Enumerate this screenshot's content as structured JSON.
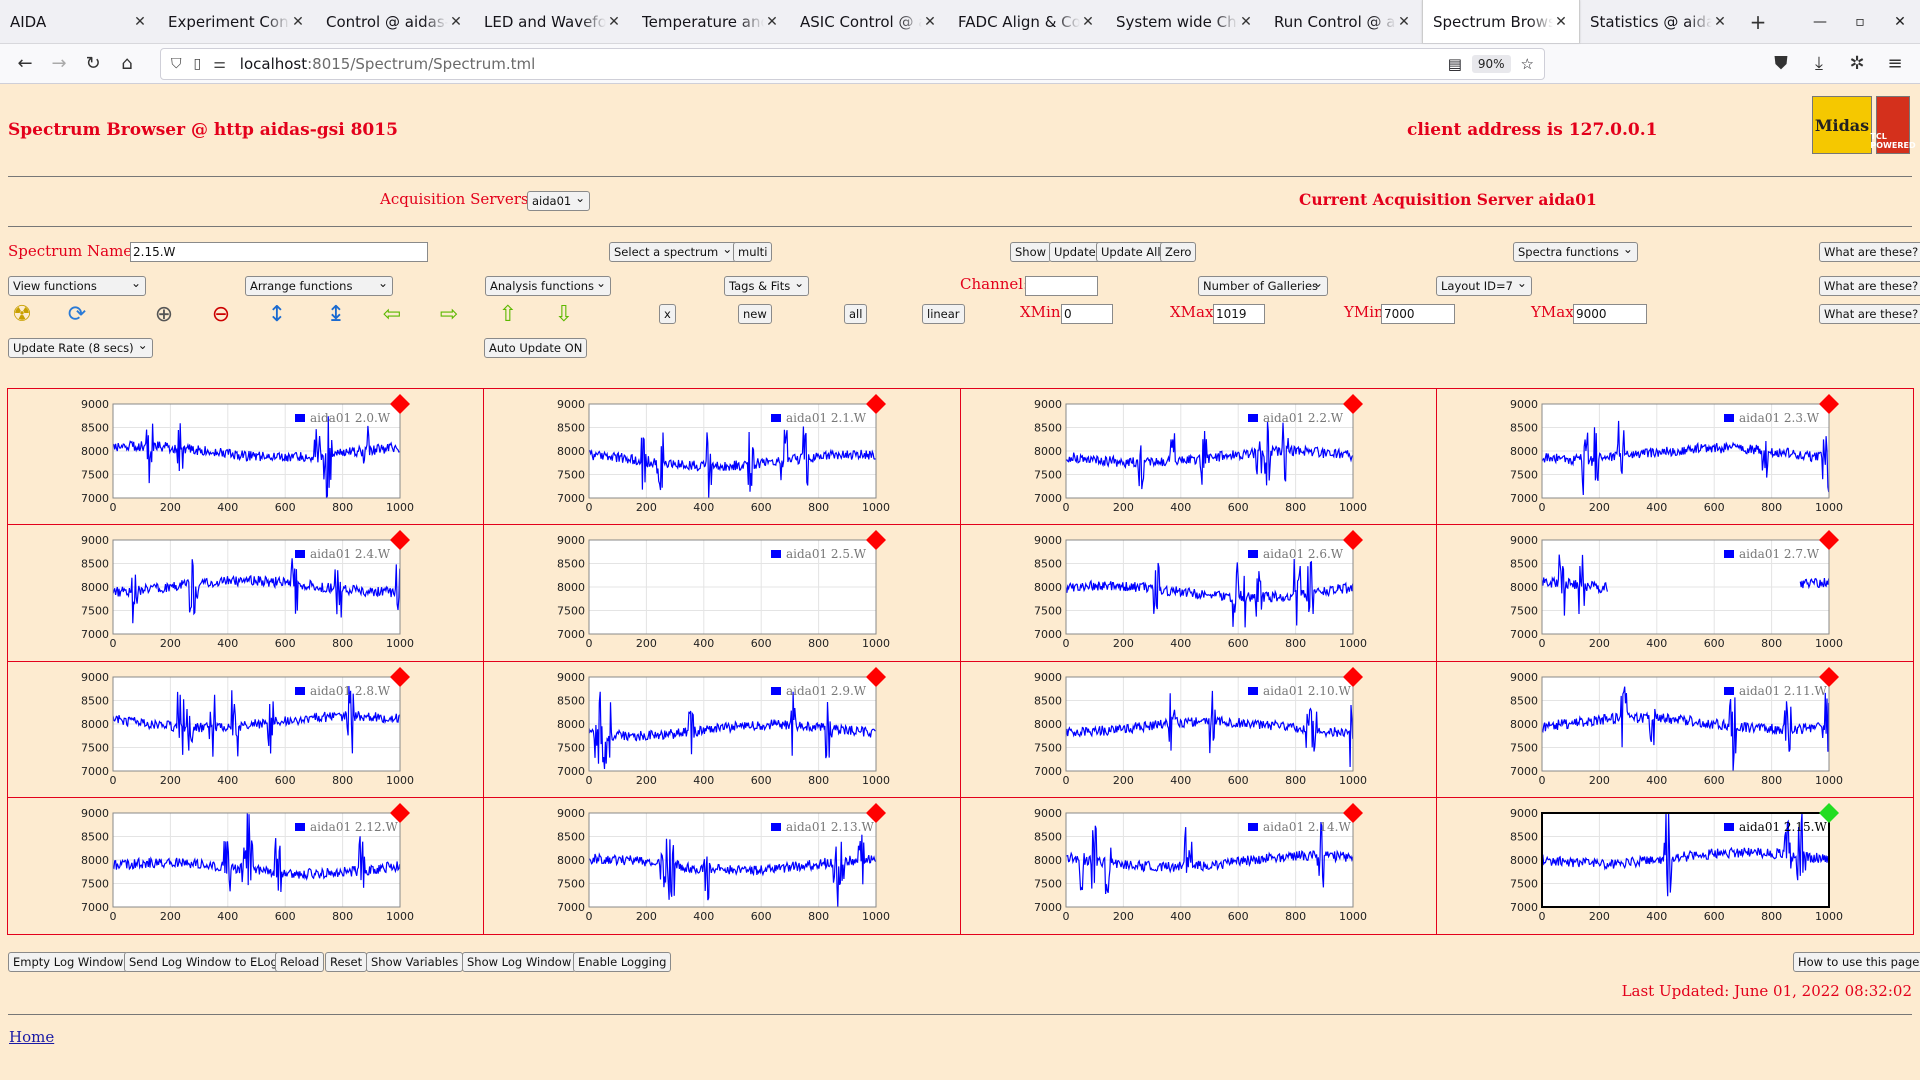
{
  "browser": {
    "tabs": [
      {
        "title": "AIDA",
        "active": false
      },
      {
        "title": "Experiment Control",
        "active": false
      },
      {
        "title": "Control @ aidas-gsi",
        "active": false
      },
      {
        "title": "LED and Waveform",
        "active": false
      },
      {
        "title": "Temperature and st",
        "active": false
      },
      {
        "title": "ASIC Control @ aid",
        "active": false
      },
      {
        "title": "FADC Align & Cont",
        "active": false
      },
      {
        "title": "System wide Check",
        "active": false
      },
      {
        "title": "Run Control @ aida",
        "active": false
      },
      {
        "title": "Spectrum Browser",
        "active": true
      },
      {
        "title": "Statistics @ aidas-g",
        "active": false
      }
    ],
    "url_host": "localhost",
    "url_path": ":8015/Spectrum/Spectrum.tml",
    "zoom": "90%"
  },
  "header": {
    "title": "Spectrum Browser @ http aidas-gsi 8015",
    "client_address": "client address is 127.0.0.1",
    "logo_text": "Midas",
    "logo2_text": "TCL POWERED"
  },
  "acquisition": {
    "label": "Acquisition Servers",
    "selected": "aida01",
    "current": "Current Acquisition Server aida01"
  },
  "controls": {
    "spectrum_name_label": "Spectrum Name:",
    "spectrum_name_value": "2.15.W",
    "select_spectrum": "Select a spectrum",
    "multi": "multi",
    "show": "Show",
    "update": "Update",
    "update_all": "Update All",
    "zero": "Zero",
    "spectra_functions": "Spectra functions",
    "what_are_these": "What are these?",
    "view_functions": "View functions",
    "arrange_functions": "Arrange functions",
    "analysis_functions": "Analysis functions",
    "tags_fits": "Tags & Fits",
    "channel_label": "Channel:",
    "channel_value": "",
    "number_of_galleries": "Number of Galleries",
    "layout": "Layout ID=7",
    "x_btn": "x",
    "new_btn": "new",
    "all_btn": "all",
    "linear_btn": "linear",
    "xmin_label": "XMin",
    "xmin_value": "0",
    "xmax_label": "XMax",
    "xmax_value": "1019",
    "ymin_label": "YMin",
    "ymin_value": "7000",
    "ymax_label": "YMax",
    "ymax_value": "9000",
    "update_rate": "Update Rate (8 secs)",
    "auto_update": "Auto Update ON"
  },
  "icons": {
    "radiation": "☢",
    "refresh": "⟳",
    "zoom_in": "⊕",
    "zoom_out": "⊖",
    "expand_y": "↕",
    "compress_y": "↨",
    "left": "⇦",
    "right": "⇨",
    "up": "⇧",
    "down": "⇩"
  },
  "chart_data": [
    {
      "type": "line",
      "legend": "aida01 2.0.W",
      "seed": 1,
      "marker": "red",
      "xlim": [
        0,
        1000
      ],
      "ylim": [
        7000,
        9000
      ],
      "xticks": [
        "0",
        "200",
        "400",
        "600",
        "800",
        "1000"
      ],
      "yticks": [
        "9000",
        "8500",
        "8000",
        "7500",
        "7000"
      ],
      "note": "approximate noisy baseline ~7900"
    },
    {
      "type": "line",
      "legend": "aida01 2.1.W",
      "seed": 2,
      "marker": "red",
      "xlim": [
        0,
        1000
      ],
      "ylim": [
        7000,
        9000
      ],
      "xticks": [
        "0",
        "200",
        "400",
        "600",
        "800",
        "1000"
      ],
      "yticks": [
        "9000",
        "8500",
        "8000",
        "7500",
        "7000"
      ]
    },
    {
      "type": "line",
      "legend": "aida01 2.2.W",
      "seed": 3,
      "marker": "red",
      "xlim": [
        0,
        1000
      ],
      "ylim": [
        7000,
        9000
      ],
      "xticks": [
        "0",
        "200",
        "400",
        "600",
        "800",
        "1000"
      ],
      "yticks": [
        "9000",
        "8500",
        "8000",
        "7500",
        "7000"
      ]
    },
    {
      "type": "line",
      "legend": "aida01 2.3.W",
      "seed": 4,
      "marker": "red",
      "xlim": [
        0,
        1000
      ],
      "ylim": [
        7000,
        9000
      ],
      "xticks": [
        "0",
        "200",
        "400",
        "600",
        "800",
        "1000"
      ],
      "yticks": [
        "9000",
        "8500",
        "8000",
        "7500",
        "7000"
      ]
    },
    {
      "type": "line",
      "legend": "aida01 2.4.W",
      "seed": 5,
      "marker": "red",
      "xlim": [
        0,
        1000
      ],
      "ylim": [
        7000,
        9000
      ],
      "xticks": [
        "0",
        "200",
        "400",
        "600",
        "800",
        "1000"
      ],
      "yticks": [
        "9000",
        "8500",
        "8000",
        "7500",
        "7000"
      ]
    },
    {
      "type": "line",
      "legend": "aida01 2.5.W",
      "seed": 6,
      "marker": "red",
      "empty": true,
      "xlim": [
        0,
        1000
      ],
      "ylim": [
        7000,
        9000
      ],
      "xticks": [
        "0",
        "200",
        "400",
        "600",
        "800",
        "1000"
      ],
      "yticks": [
        "9000",
        "8500",
        "8000",
        "7500",
        "7000"
      ]
    },
    {
      "type": "line",
      "legend": "aida01 2.6.W",
      "seed": 7,
      "marker": "red",
      "xlim": [
        0,
        1000
      ],
      "ylim": [
        7000,
        9000
      ],
      "xticks": [
        "0",
        "200",
        "400",
        "600",
        "800",
        "1000"
      ],
      "yticks": [
        "9000",
        "8500",
        "8000",
        "7500",
        "7000"
      ]
    },
    {
      "type": "line",
      "legend": "aida01 2.7.W",
      "seed": 8,
      "marker": "red",
      "partial": true,
      "xlim": [
        0,
        1000
      ],
      "ylim": [
        7000,
        9000
      ],
      "xticks": [
        "0",
        "200",
        "400",
        "600",
        "800",
        "1000"
      ],
      "yticks": [
        "9000",
        "8500",
        "8000",
        "7500",
        "7000"
      ]
    },
    {
      "type": "line",
      "legend": "aida01 2.8.W",
      "seed": 9,
      "marker": "red",
      "xlim": [
        0,
        1000
      ],
      "ylim": [
        7000,
        9000
      ],
      "xticks": [
        "0",
        "200",
        "400",
        "600",
        "800",
        "1000"
      ],
      "yticks": [
        "9000",
        "8500",
        "8000",
        "7500",
        "7000"
      ]
    },
    {
      "type": "line",
      "legend": "aida01 2.9.W",
      "seed": 10,
      "marker": "red",
      "xlim": [
        0,
        1000
      ],
      "ylim": [
        7000,
        9000
      ],
      "xticks": [
        "0",
        "200",
        "400",
        "600",
        "800",
        "1000"
      ],
      "yticks": [
        "9000",
        "8500",
        "8000",
        "7500",
        "7000"
      ]
    },
    {
      "type": "line",
      "legend": "aida01 2.10.W",
      "seed": 11,
      "marker": "red",
      "xlim": [
        0,
        1000
      ],
      "ylim": [
        7000,
        9000
      ],
      "xticks": [
        "0",
        "200",
        "400",
        "600",
        "800",
        "1000"
      ],
      "yticks": [
        "9000",
        "8500",
        "8000",
        "7500",
        "7000"
      ]
    },
    {
      "type": "line",
      "legend": "aida01 2.11.W",
      "seed": 12,
      "marker": "red",
      "xlim": [
        0,
        1000
      ],
      "ylim": [
        7000,
        9000
      ],
      "xticks": [
        "0",
        "200",
        "400",
        "600",
        "800",
        "1000"
      ],
      "yticks": [
        "9000",
        "8500",
        "8000",
        "7500",
        "7000"
      ]
    },
    {
      "type": "line",
      "legend": "aida01 2.12.W",
      "seed": 13,
      "marker": "red",
      "xlim": [
        0,
        1000
      ],
      "ylim": [
        7000,
        9000
      ],
      "xticks": [
        "0",
        "200",
        "400",
        "600",
        "800",
        "1000"
      ],
      "yticks": [
        "9000",
        "8500",
        "8000",
        "7500",
        "7000"
      ]
    },
    {
      "type": "line",
      "legend": "aida01 2.13.W",
      "seed": 14,
      "marker": "red",
      "xlim": [
        0,
        1000
      ],
      "ylim": [
        7000,
        9000
      ],
      "xticks": [
        "0",
        "200",
        "400",
        "600",
        "800",
        "1000"
      ],
      "yticks": [
        "9000",
        "8500",
        "8000",
        "7500",
        "7000"
      ]
    },
    {
      "type": "line",
      "legend": "aida01 2.14.W",
      "seed": 15,
      "marker": "red",
      "xlim": [
        0,
        1000
      ],
      "ylim": [
        7000,
        9000
      ],
      "xticks": [
        "0",
        "200",
        "400",
        "600",
        "800",
        "1000"
      ],
      "yticks": [
        "9000",
        "8500",
        "8000",
        "7500",
        "7000"
      ]
    },
    {
      "type": "line",
      "legend": "aida01 2.15.W",
      "seed": 16,
      "marker": "green",
      "selected": true,
      "xlim": [
        0,
        1000
      ],
      "ylim": [
        7000,
        9000
      ],
      "xticks": [
        "0",
        "200",
        "400",
        "600",
        "800",
        "1000"
      ],
      "yticks": [
        "9000",
        "8500",
        "8000",
        "7500",
        "7000"
      ]
    }
  ],
  "footer": {
    "empty_log": "Empty Log Window",
    "send_log": "Send Log Window to ELog",
    "reload": "Reload",
    "reset": "Reset",
    "show_variables": "Show Variables",
    "show_log": "Show Log Window",
    "enable_logging": "Enable Logging",
    "how_to": "How to use this page",
    "last_updated": "Last Updated: June 01, 2022 08:32:02",
    "home": "Home"
  },
  "colors": {
    "page_bg": "#fdebd0",
    "accent_red": "#e3001b",
    "trace_blue": "#0000ff",
    "marker_red": "#ff0000",
    "marker_green": "#22dd22"
  }
}
